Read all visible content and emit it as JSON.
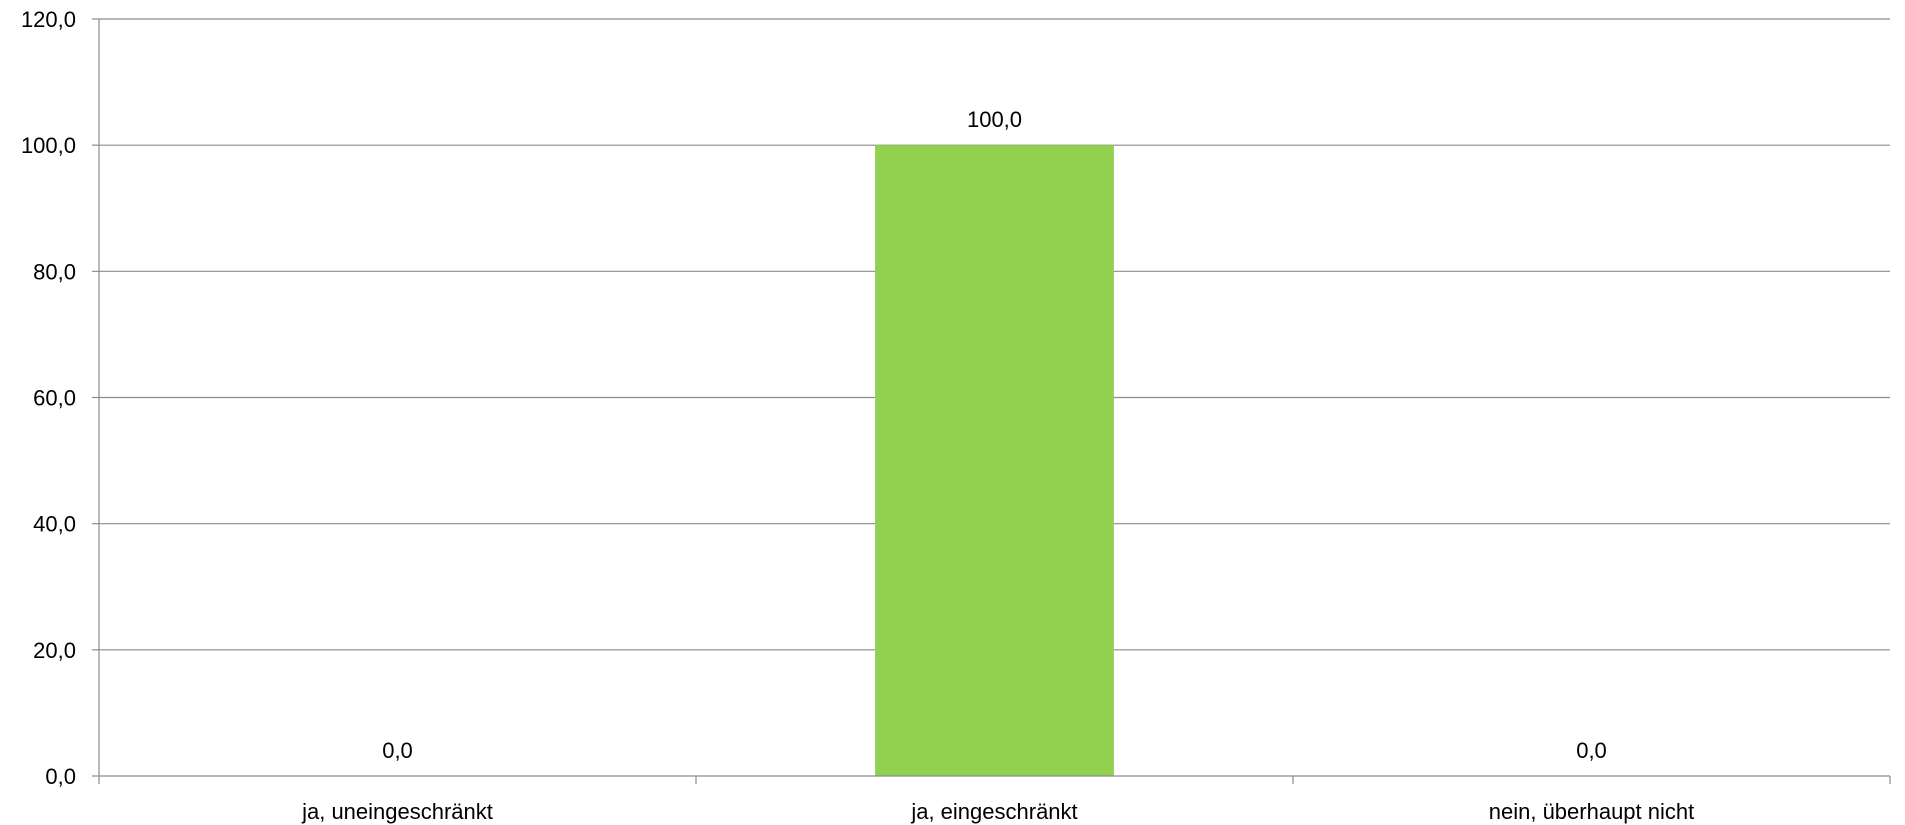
{
  "chart_data": {
    "type": "bar",
    "categories": [
      "ja, uneingeschränkt",
      "ja, eingeschränkt",
      "nein, überhaupt nicht"
    ],
    "values": [
      0.0,
      100.0,
      0.0
    ],
    "value_labels": [
      "0,0",
      "100,0",
      "0,0"
    ],
    "y_ticks": [
      0,
      20,
      40,
      60,
      80,
      100,
      120
    ],
    "y_tick_labels": [
      "0,0",
      "20,0",
      "40,0",
      "60,0",
      "80,0",
      "100,0",
      "120,0"
    ],
    "ylim": [
      0,
      120
    ],
    "grid": true,
    "legend": "none",
    "bar_color": "#92d050",
    "grid_color": "#8c8c8c"
  }
}
